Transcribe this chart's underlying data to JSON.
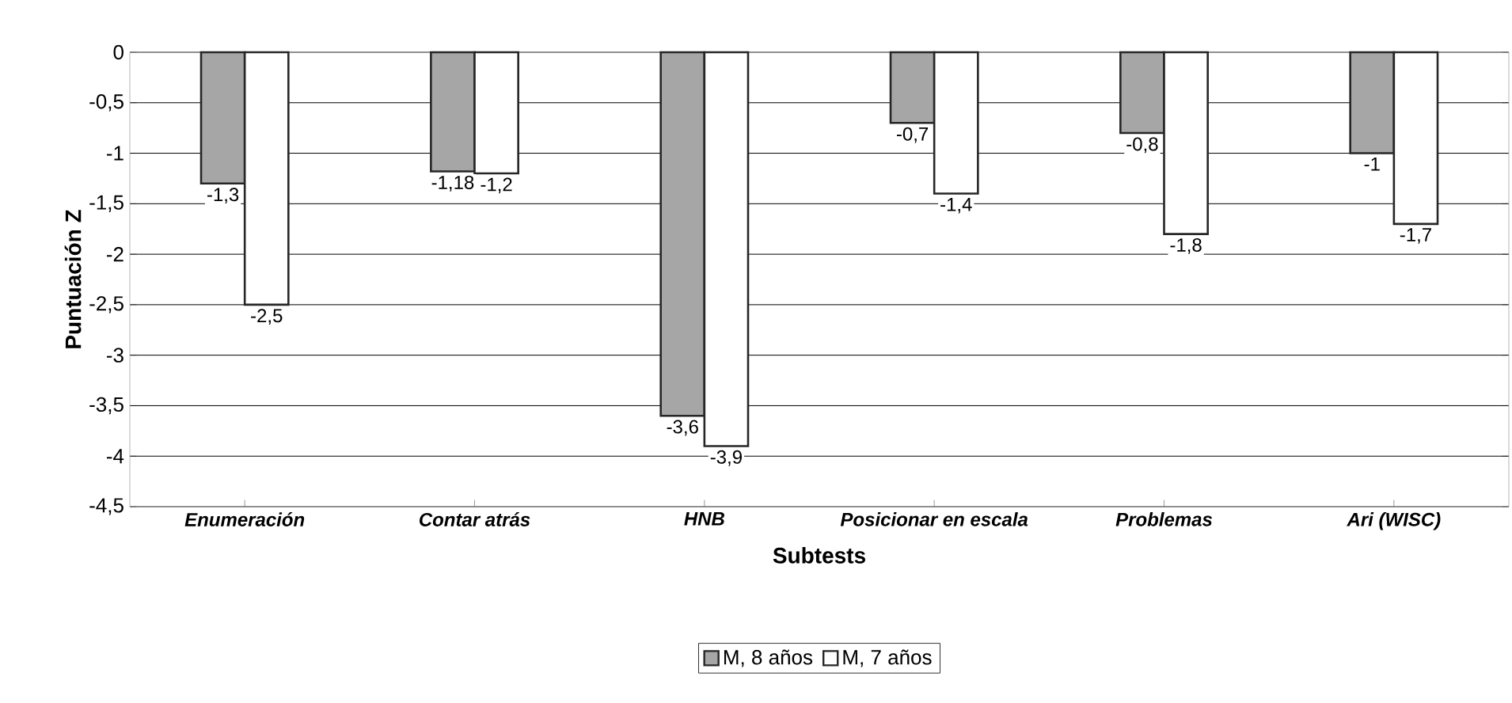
{
  "chart_data": {
    "type": "bar",
    "xlabel": "Subtests",
    "ylabel": "Puntuación Z",
    "categories": [
      "Enumeración",
      "Contar atrás",
      "HNB",
      "Posicionar en escala",
      "Problemas",
      "Ari (WISC)"
    ],
    "series": [
      {
        "name": "M, 8 años",
        "color": "#a6a6a6",
        "values": [
          -1.3,
          -1.18,
          -3.6,
          -0.7,
          -0.8,
          -1
        ],
        "value_labels": [
          "-1,3",
          "-1,18",
          "-3,6",
          "-0,7",
          "-0,8",
          "-1"
        ]
      },
      {
        "name": "M, 7 años",
        "color": "#ffffff",
        "values": [
          -2.5,
          -1.2,
          -3.9,
          -1.4,
          -1.8,
          -1.7
        ],
        "value_labels": [
          "-2,5",
          "-1,2",
          "-3,9",
          "-1,4",
          "-1,8",
          "-1,7"
        ]
      }
    ],
    "ylim": [
      -4.5,
      0
    ],
    "yticks": [
      0,
      {
        "value": -0.5,
        "label": "-0,5"
      },
      -1,
      {
        "value": -1.5,
        "label": "-1,5"
      },
      -2,
      {
        "value": -2.5,
        "label": "-2,5"
      },
      -3,
      {
        "value": -3.5,
        "label": "-3,5"
      },
      -4,
      {
        "value": -4.5,
        "label": "-4,5"
      }
    ],
    "grid": "y",
    "legend": "bottom"
  }
}
